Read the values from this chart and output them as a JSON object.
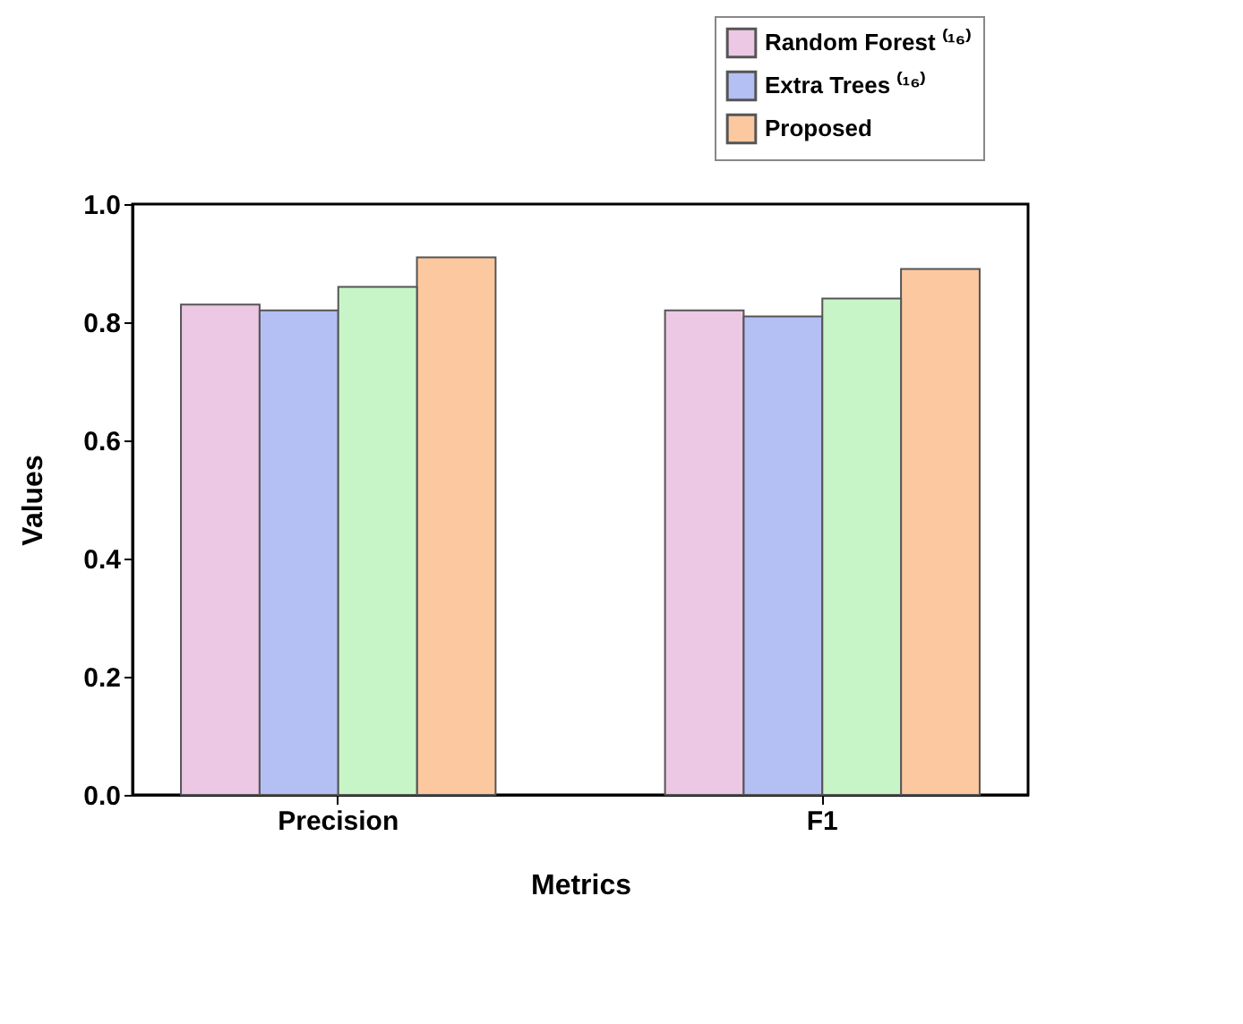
{
  "chart_data": {
    "type": "bar",
    "xlabel": "Metrics",
    "ylabel": "Values",
    "categories": [
      "Precision",
      "F1"
    ],
    "series": [
      {
        "name": "Random Forest ⁽¹⁶⁾",
        "color": "#ecc8e4",
        "values": [
          0.83,
          0.82
        ]
      },
      {
        "name": "Extra Trees ⁽¹⁶⁾",
        "color": "#b4bff4",
        "values": [
          0.82,
          0.81
        ]
      },
      {
        "color": "#c8f5c8",
        "values": [
          0.86,
          0.84
        ]
      },
      {
        "name": "Proposed",
        "color": "#fcc8a0",
        "values": [
          0.91,
          0.89
        ]
      }
    ],
    "ylim": [
      0,
      1.0
    ],
    "yticks": [
      {
        "value": 0,
        "label": "0.0"
      },
      0.2,
      0.4,
      0.6,
      0.8,
      {
        "value": 1,
        "label": "1.0"
      }
    ],
    "grid": false,
    "legend": "top right"
  }
}
